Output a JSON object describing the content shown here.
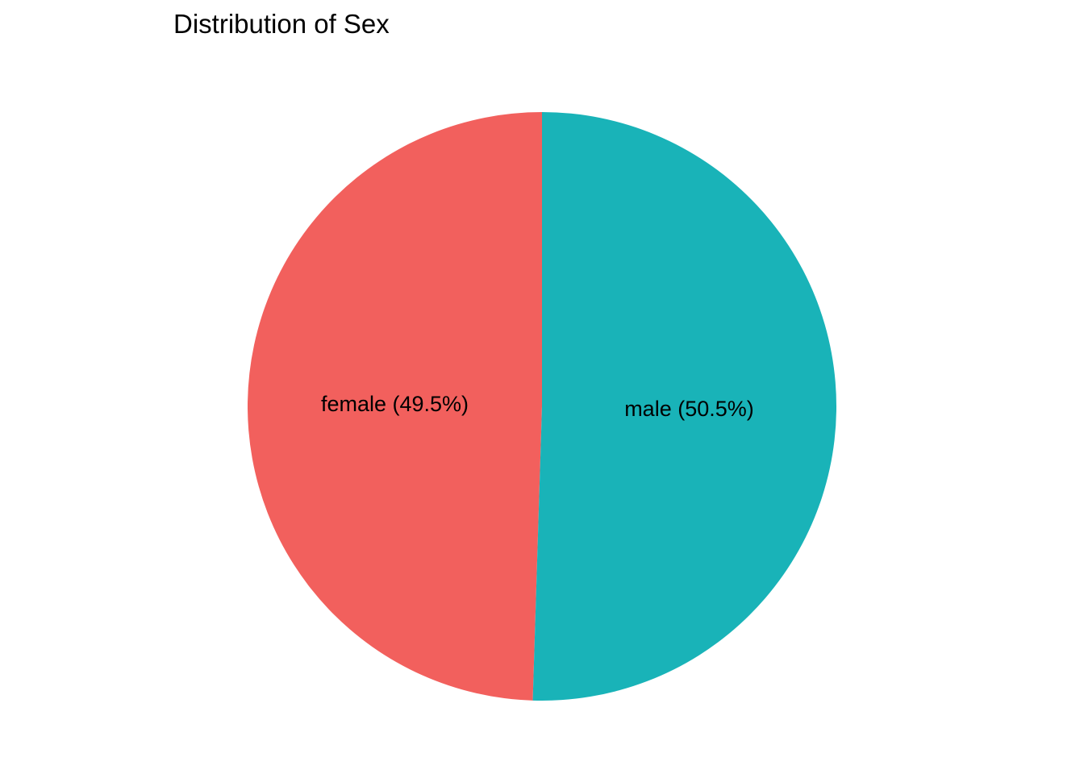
{
  "chart_data": {
    "type": "pie",
    "title": "Distribution of Sex",
    "categories": [
      "female",
      "male"
    ],
    "values": [
      49.5,
      50.5
    ],
    "labels": [
      "female (49.5%)",
      "male (50.5%)"
    ],
    "colors": [
      "#F2605D",
      "#19B3B8"
    ],
    "legend": "none",
    "grid": false
  }
}
